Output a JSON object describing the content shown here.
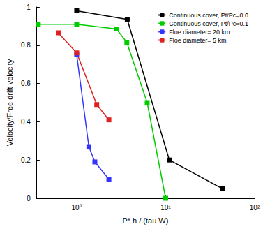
{
  "chart_data": {
    "type": "line",
    "x_label": "P* h / (tau W)",
    "y_label": "Velocity/Free drift velocity",
    "log": "x",
    "xlim": [
      0.35,
      100
    ],
    "xticks": [
      {
        "value": 1,
        "label": "10⁰"
      },
      {
        "value": 10,
        "label": "10¹"
      },
      {
        "value": 100,
        "label": "10²"
      }
    ],
    "ylim": [
      0,
      1
    ],
    "yticks": [
      0,
      0.2,
      0.4,
      0.6,
      0.8,
      1
    ],
    "grid": false,
    "legend": "upper right",
    "marker": "square",
    "line_style": "solid",
    "series": [
      {
        "name": "Continuous cover, Pt/Pc=0.0",
        "color": "#000000",
        "x": [
          1,
          3.7,
          11,
          43.6
        ],
        "values": [
          0.98,
          0.935,
          0.2,
          0.05
        ]
      },
      {
        "name": "Continuous cover, Pt/Pc=0.1",
        "color": "#00cc00",
        "x": [
          0.37,
          1,
          2.8,
          3.66,
          6.2,
          10
        ],
        "values": [
          0.91,
          0.91,
          0.885,
          0.815,
          0.5,
          0
        ]
      },
      {
        "name": "Floe diameter= 20 km",
        "color": "#3333ff",
        "x": [
          1,
          1.37,
          1.6,
          2.3
        ],
        "values": [
          0.75,
          0.27,
          0.19,
          0.1
        ]
      },
      {
        "name": "Floe diameter= 5 km",
        "color": "#dd2222",
        "x": [
          0.62,
          1,
          1.68,
          2.3
        ],
        "values": [
          0.865,
          0.76,
          0.49,
          0.41
        ]
      }
    ]
  }
}
